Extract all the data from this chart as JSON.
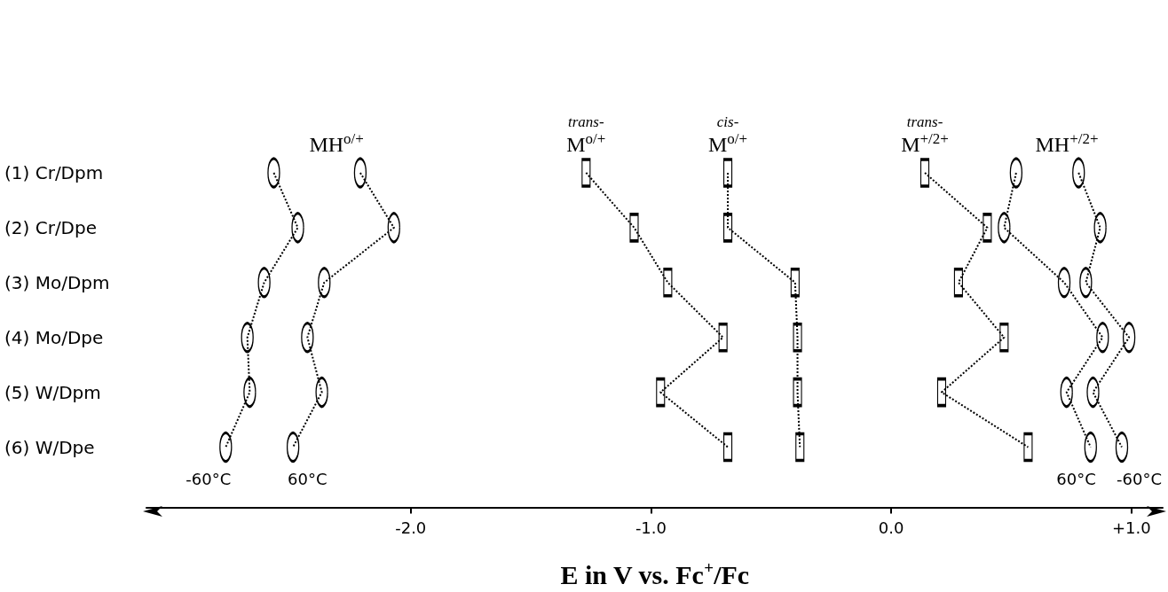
{
  "chart_data": {
    "type": "line",
    "orientation": "horizontal",
    "categories": [
      "(1) Cr/Dpm",
      "(2) Cr/Dpe",
      "(3) Mo/Dpm",
      "(4) Mo/Dpe",
      "(5) W/Dpm",
      "(6) W/Dpe"
    ],
    "xlabel": "E in V vs. Fc$^{+}$/Fc",
    "xlim": [
      -3.1,
      1.13
    ],
    "xticks": [
      {
        "value": -2,
        "label": "-2.0"
      },
      {
        "value": -1,
        "label": "-1.0"
      },
      {
        "value": 0,
        "label": "0.0"
      },
      {
        "value": 1,
        "label": "+1.0"
      }
    ],
    "grid": false,
    "legend": false,
    "line_style": "dotted",
    "annotations": [
      "MH$^{o/+}$",
      "MH$^{+/2+}$"
    ],
    "series": [
      {
        "name": "-60°C",
        "color": "#000000",
        "marker": "circle",
        "values": [
          -2.57,
          -2.47,
          -2.61,
          -2.68,
          -2.67,
          -2.77
        ]
      },
      {
        "name": "60°C",
        "color": "#000000",
        "marker": "circle",
        "values": [
          -2.21,
          -2.07,
          -2.36,
          -2.43,
          -2.37,
          -2.49
        ]
      },
      {
        "name": "trans-M$^{o/+}$",
        "color": "#000000",
        "marker": "square",
        "values": [
          -1.27,
          -1.07,
          -0.93,
          -0.7,
          -0.96,
          -0.68
        ]
      },
      {
        "name": "cis-M$^{o/+}$",
        "color": "#000000",
        "marker": "square",
        "values": [
          -0.68,
          -0.68,
          -0.4,
          -0.39,
          -0.39,
          -0.38
        ]
      },
      {
        "name": "trans-M$^{+/2+}$",
        "color": "#000000",
        "marker": "square",
        "values": [
          0.14,
          0.4,
          0.28,
          0.47,
          0.21,
          0.57
        ]
      },
      {
        "name": "60°C",
        "color": "#000000",
        "marker": "circle",
        "values": [
          0.52,
          0.47,
          0.72,
          0.88,
          0.73,
          0.83
        ]
      },
      {
        "name": "-60°C",
        "color": "#000000",
        "marker": "circle",
        "values": [
          0.78,
          0.87,
          0.81,
          0.99,
          0.84,
          0.96
        ]
      }
    ]
  }
}
